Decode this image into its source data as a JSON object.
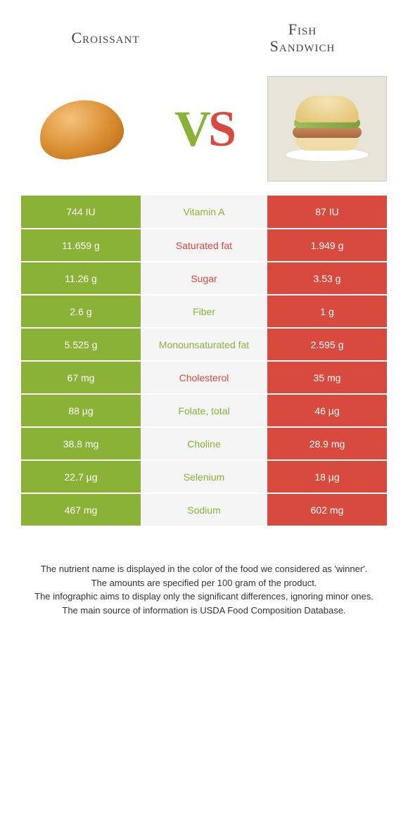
{
  "titles": {
    "left": "Croissant",
    "right_line1": "Fish",
    "right_line2": "Sandwich"
  },
  "vs": {
    "v": "V",
    "s": "S"
  },
  "colors": {
    "left_win": "#8ab236",
    "right_win": "#d94a3e",
    "lose": "#a9a9a9",
    "mid_bg": "#f5f5f5",
    "background": "#ffffff",
    "text": "#333333"
  },
  "rows": [
    {
      "left": "744 IU",
      "nutrient": "Vitamin A",
      "right": "87 IU",
      "winner": "left"
    },
    {
      "left": "11.659 g",
      "nutrient": "Saturated fat",
      "right": "1.949 g",
      "winner": "right"
    },
    {
      "left": "11.26 g",
      "nutrient": "Sugar",
      "right": "3.53 g",
      "winner": "right"
    },
    {
      "left": "2.6 g",
      "nutrient": "Fiber",
      "right": "1 g",
      "winner": "left"
    },
    {
      "left": "5.525 g",
      "nutrient": "Monounsaturated fat",
      "right": "2.595 g",
      "winner": "left"
    },
    {
      "left": "67 mg",
      "nutrient": "Cholesterol",
      "right": "35 mg",
      "winner": "right"
    },
    {
      "left": "88 µg",
      "nutrient": "Folate, total",
      "right": "46 µg",
      "winner": "left"
    },
    {
      "left": "38.8 mg",
      "nutrient": "Choline",
      "right": "28.9 mg",
      "winner": "left"
    },
    {
      "left": "22.7 µg",
      "nutrient": "Selenium",
      "right": "18 µg",
      "winner": "left"
    },
    {
      "left": "467 mg",
      "nutrient": "Sodium",
      "right": "602 mg",
      "winner": "left"
    }
  ],
  "footer": {
    "line1": "The nutrient name is displayed in the color of the food we considered as 'winner'.",
    "line2": "The amounts are specified per 100 gram of the product.",
    "line3": "The infographic aims to display only the significant differences, ignoring minor ones.",
    "line4": "The main source of information is USDA Food Composition Database."
  }
}
